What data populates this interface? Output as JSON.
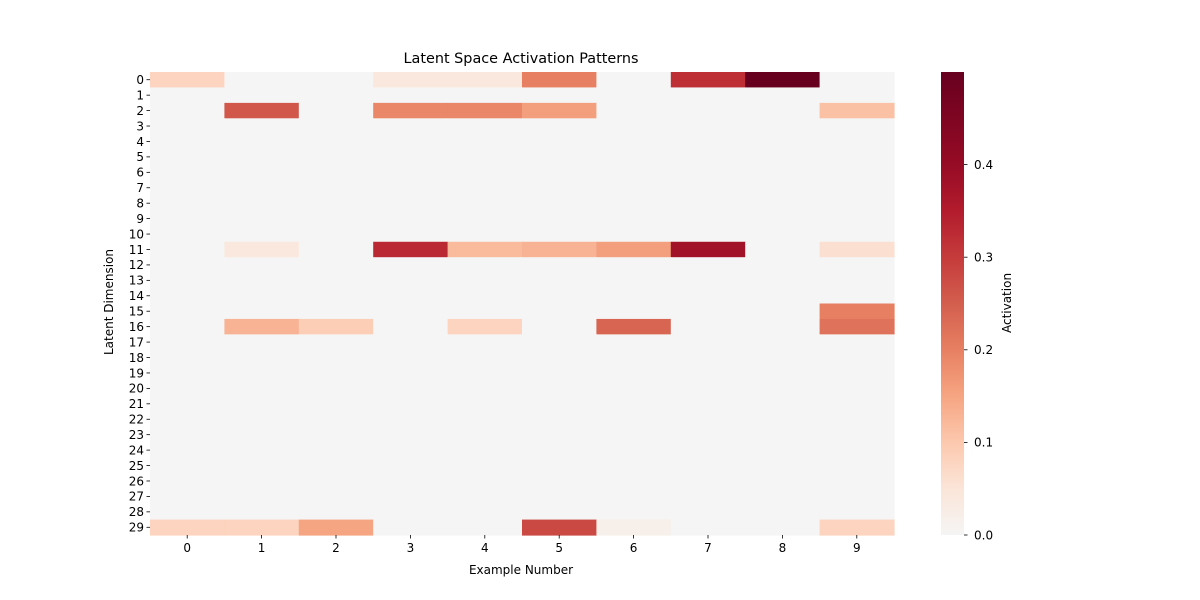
{
  "chart_data": {
    "type": "heatmap",
    "title": "Latent Space Activation Patterns",
    "xlabel": "Example Number",
    "ylabel": "Latent Dimension",
    "x_categories": [
      "0",
      "1",
      "2",
      "3",
      "4",
      "5",
      "6",
      "7",
      "8",
      "9"
    ],
    "y_categories": [
      "0",
      "1",
      "2",
      "3",
      "4",
      "5",
      "6",
      "7",
      "8",
      "9",
      "10",
      "11",
      "12",
      "13",
      "14",
      "15",
      "16",
      "17",
      "18",
      "19",
      "20",
      "21",
      "22",
      "23",
      "24",
      "25",
      "26",
      "27",
      "28",
      "29"
    ],
    "colorbar": {
      "label": "Activation",
      "range": [
        0,
        0.5
      ],
      "ticks": [
        "0.0",
        "0.1",
        "0.2",
        "0.3",
        "0.4"
      ],
      "tick_values": [
        0,
        0.1,
        0.2,
        0.3,
        0.4
      ],
      "colormap": "RdBu_r (positive half)"
    },
    "cells": [
      {
        "row": 0,
        "col": 0,
        "value": 0.08
      },
      {
        "row": 0,
        "col": 3,
        "value": 0.04
      },
      {
        "row": 0,
        "col": 4,
        "value": 0.04
      },
      {
        "row": 0,
        "col": 5,
        "value": 0.2
      },
      {
        "row": 0,
        "col": 7,
        "value": 0.32
      },
      {
        "row": 0,
        "col": 8,
        "value": 0.5
      },
      {
        "row": 2,
        "col": 1,
        "value": 0.26
      },
      {
        "row": 2,
        "col": 3,
        "value": 0.19
      },
      {
        "row": 2,
        "col": 4,
        "value": 0.19
      },
      {
        "row": 2,
        "col": 5,
        "value": 0.16
      },
      {
        "row": 2,
        "col": 9,
        "value": 0.11
      },
      {
        "row": 11,
        "col": 1,
        "value": 0.04
      },
      {
        "row": 11,
        "col": 3,
        "value": 0.33
      },
      {
        "row": 11,
        "col": 4,
        "value": 0.12
      },
      {
        "row": 11,
        "col": 5,
        "value": 0.13
      },
      {
        "row": 11,
        "col": 6,
        "value": 0.16
      },
      {
        "row": 11,
        "col": 7,
        "value": 0.38
      },
      {
        "row": 11,
        "col": 9,
        "value": 0.06
      },
      {
        "row": 15,
        "col": 9,
        "value": 0.2
      },
      {
        "row": 16,
        "col": 1,
        "value": 0.13
      },
      {
        "row": 16,
        "col": 2,
        "value": 0.09
      },
      {
        "row": 16,
        "col": 4,
        "value": 0.08
      },
      {
        "row": 16,
        "col": 6,
        "value": 0.24
      },
      {
        "row": 16,
        "col": 9,
        "value": 0.22
      },
      {
        "row": 29,
        "col": 0,
        "value": 0.08
      },
      {
        "row": 29,
        "col": 1,
        "value": 0.08
      },
      {
        "row": 29,
        "col": 2,
        "value": 0.15
      },
      {
        "row": 29,
        "col": 5,
        "value": 0.28
      },
      {
        "row": 29,
        "col": 6,
        "value": 0.02
      },
      {
        "row": 29,
        "col": 9,
        "value": 0.08
      }
    ]
  }
}
